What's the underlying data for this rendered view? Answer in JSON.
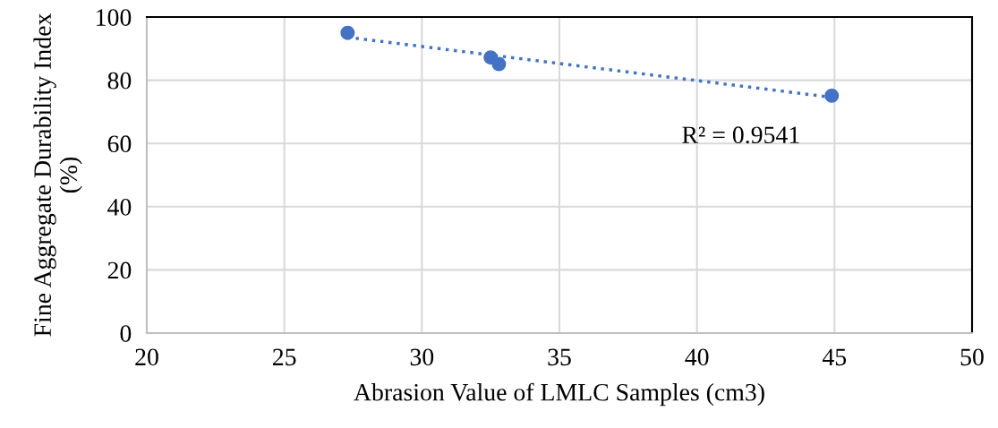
{
  "chart_data": {
    "type": "scatter",
    "xlabel": "Abrasion Value of LMLC Samples (cm3)",
    "ylabel": "Fine Aggregate Durability Index (%)",
    "series": [
      {
        "color": "#4472c4",
        "x": [
          27.3,
          32.5,
          32.8,
          44.9
        ],
        "values": [
          95,
          87.2,
          85.1,
          75.1
        ],
        "marker": "circle"
      },
      {
        "type": "line",
        "color": "#4472c4",
        "x": [
          27.3,
          44.9
        ],
        "values": [
          93.6,
          74.6
        ],
        "line_style": "dotted",
        "marker": "none"
      }
    ],
    "annotations": [
      "R² = 0.9541"
    ],
    "xlim": [
      20,
      50
    ],
    "xticks": [
      20,
      25,
      30,
      35,
      40,
      45,
      50
    ],
    "ylim": [
      0,
      100
    ],
    "yticks": [
      0,
      20,
      40,
      60,
      80,
      100
    ],
    "grid": true
  }
}
